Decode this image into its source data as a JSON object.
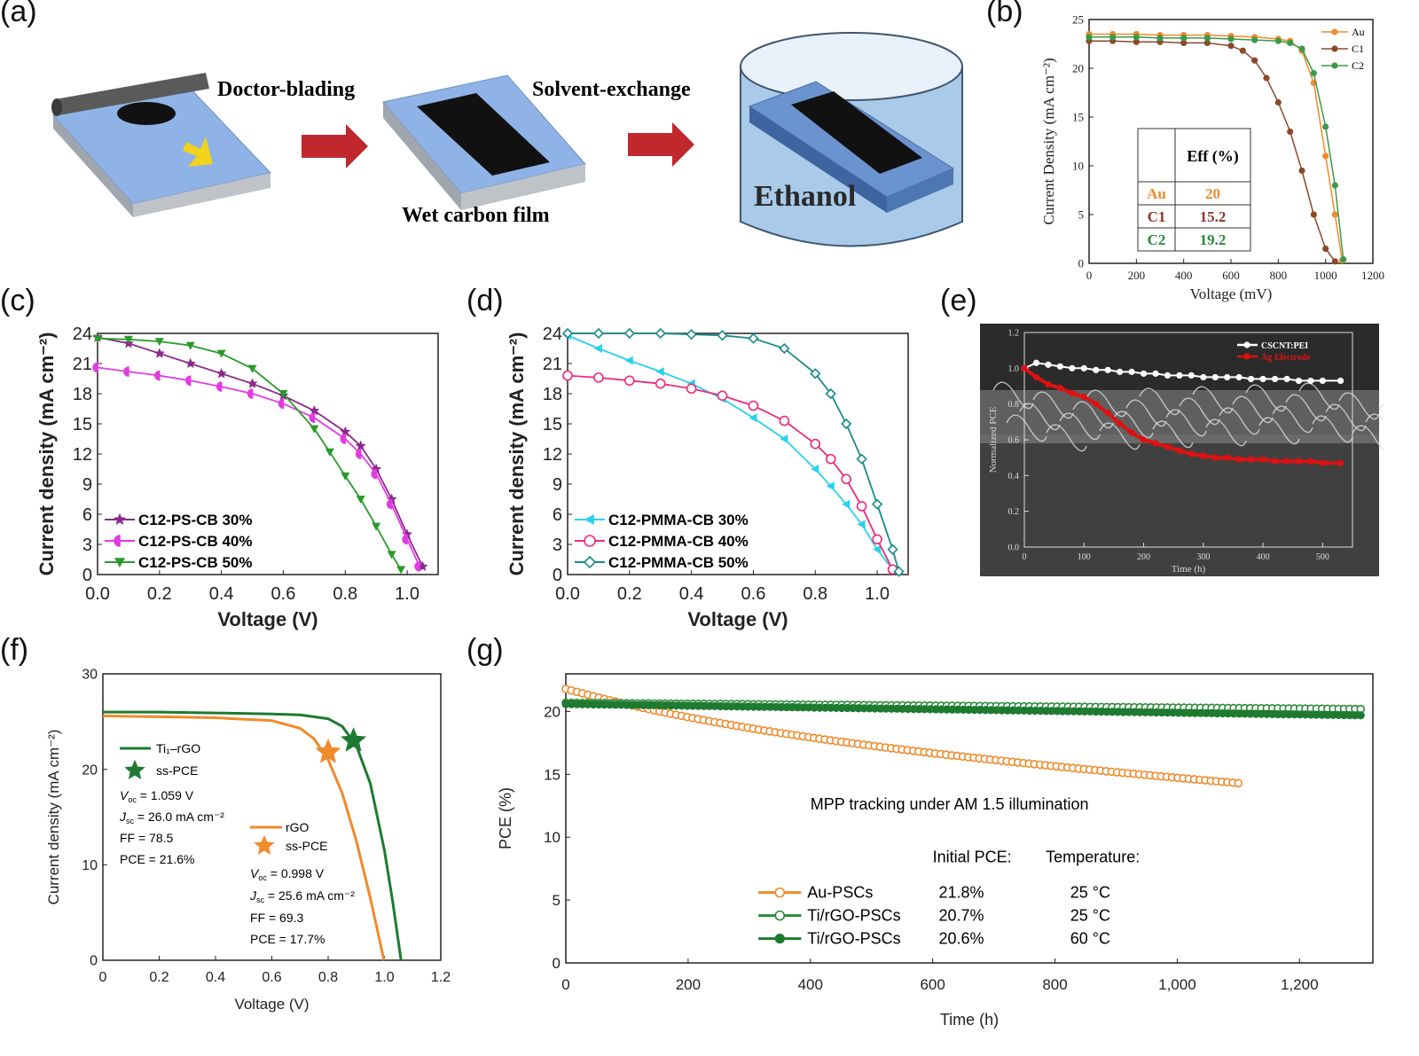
{
  "panel_letters": [
    "(a)",
    "(b)",
    "(c)",
    "(d)",
    "(e)",
    "(f)",
    "(g)"
  ],
  "schematic": {
    "step1": "Doctor-blading",
    "step2_caption": "Wet carbon film",
    "step3": "Solvent-exchange",
    "beaker_label": "Ethanol",
    "colors": {
      "substrate": "#8fb3e6",
      "film": "#111111",
      "arrow": "#c0282d",
      "rod": "#555555"
    },
    "icons": [
      "blade-rod-icon",
      "substrate-icon",
      "arrow-icon",
      "beaker-icon"
    ]
  },
  "chart_data": [
    {
      "id": "b",
      "type": "line",
      "xlabel": "Voltage (mV)",
      "ylabel": "Current Density (mA cm⁻²)",
      "xlim": [
        0,
        1200
      ],
      "ylim": [
        0,
        25
      ],
      "xticks": [
        0,
        200,
        400,
        600,
        800,
        1000,
        1200
      ],
      "yticks": [
        0,
        5,
        10,
        15,
        20,
        25
      ],
      "legend_position": "top-right",
      "series": [
        {
          "name": "Au",
          "color": "#f08a2a",
          "x": [
            0,
            100,
            200,
            300,
            400,
            500,
            600,
            700,
            800,
            850,
            900,
            950,
            1000,
            1040,
            1070
          ],
          "y": [
            23.5,
            23.5,
            23.5,
            23.4,
            23.4,
            23.4,
            23.3,
            23.2,
            23.0,
            22.8,
            21.8,
            18.5,
            11.0,
            5.0,
            0.3
          ]
        },
        {
          "name": "C1",
          "color": "#8a4a2a",
          "x": [
            0,
            100,
            200,
            300,
            400,
            500,
            600,
            650,
            700,
            750,
            800,
            850,
            900,
            950,
            1000,
            1040
          ],
          "y": [
            22.8,
            22.8,
            22.7,
            22.7,
            22.6,
            22.6,
            22.3,
            21.8,
            20.8,
            19.0,
            16.5,
            13.5,
            9.5,
            5.0,
            1.5,
            0.2
          ]
        },
        {
          "name": "C2",
          "color": "#3a9a4a",
          "x": [
            0,
            100,
            200,
            300,
            400,
            500,
            600,
            700,
            800,
            850,
            900,
            950,
            1000,
            1040,
            1075
          ],
          "y": [
            23.2,
            23.2,
            23.2,
            23.1,
            23.1,
            23.1,
            23.0,
            22.9,
            22.8,
            22.6,
            22.0,
            19.5,
            14.0,
            8.0,
            0.4
          ]
        }
      ],
      "table": {
        "header": "Eff (%)",
        "rows": [
          {
            "label": "Au",
            "value": "20",
            "color": "#f08a2a"
          },
          {
            "label": "C1",
            "value": "15.2",
            "color": "#8a3a2a"
          },
          {
            "label": "C2",
            "value": "19.2",
            "color": "#2a8a3a"
          }
        ]
      }
    },
    {
      "id": "c",
      "type": "line",
      "xlabel": "Voltage (V)",
      "ylabel": "Current density (mA cm⁻²)",
      "xlim": [
        0,
        1.1
      ],
      "ylim": [
        0,
        24
      ],
      "xticks": [
        0.0,
        0.2,
        0.4,
        0.6,
        0.8,
        1.0
      ],
      "xtick_labels": [
        "0.0",
        "0.2",
        "0.4",
        "0.6",
        "0.8",
        "1.0"
      ],
      "yticks": [
        0,
        3,
        6,
        9,
        12,
        15,
        18,
        21,
        24
      ],
      "legend_position": "bottom-left",
      "series": [
        {
          "name": "C12-PS-CB 30%",
          "color": "#8b2a8b",
          "marker": "star",
          "x": [
            0,
            0.1,
            0.2,
            0.3,
            0.4,
            0.5,
            0.6,
            0.7,
            0.8,
            0.85,
            0.9,
            0.95,
            1.0,
            1.05
          ],
          "y": [
            23.6,
            23.0,
            22.0,
            21.0,
            20.0,
            19.0,
            17.8,
            16.3,
            14.2,
            12.8,
            10.5,
            7.5,
            4.0,
            0.8
          ]
        },
        {
          "name": "C12-PS-CB 40%",
          "color": "#e23be2",
          "marker": "half",
          "x": [
            0,
            0.1,
            0.2,
            0.3,
            0.4,
            0.5,
            0.6,
            0.7,
            0.8,
            0.85,
            0.9,
            0.95,
            1.0,
            1.04
          ],
          "y": [
            20.6,
            20.2,
            19.8,
            19.3,
            18.7,
            18.0,
            17.0,
            15.6,
            13.5,
            12.0,
            10.0,
            7.0,
            3.5,
            0.8
          ]
        },
        {
          "name": "C12-PS-CB 50%",
          "color": "#2a9a2a",
          "marker": "triangle-down",
          "x": [
            0,
            0.1,
            0.2,
            0.3,
            0.4,
            0.5,
            0.6,
            0.7,
            0.75,
            0.8,
            0.85,
            0.9,
            0.95,
            0.98
          ],
          "y": [
            23.5,
            23.4,
            23.2,
            22.8,
            22.0,
            20.5,
            18.0,
            14.5,
            12.2,
            9.8,
            7.5,
            4.8,
            2.0,
            0.5
          ]
        }
      ]
    },
    {
      "id": "d",
      "type": "line",
      "xlabel": "Voltage (V)",
      "ylabel": "Current density (mA cm⁻²)",
      "xlim": [
        0,
        1.1
      ],
      "ylim": [
        0,
        24
      ],
      "xticks": [
        0.0,
        0.2,
        0.4,
        0.6,
        0.8,
        1.0
      ],
      "xtick_labels": [
        "0.0",
        "0.2",
        "0.4",
        "0.6",
        "0.8",
        "1.0"
      ],
      "yticks": [
        0,
        3,
        6,
        9,
        12,
        15,
        18,
        21,
        24
      ],
      "legend_position": "bottom-left",
      "series": [
        {
          "name": "C12-PMMA-CB 30%",
          "color": "#2ad0ef",
          "marker": "triangle-left",
          "x": [
            0,
            0.1,
            0.2,
            0.3,
            0.4,
            0.5,
            0.6,
            0.7,
            0.8,
            0.85,
            0.9,
            0.95,
            1.0,
            1.05
          ],
          "y": [
            23.8,
            22.5,
            21.3,
            20.2,
            19.0,
            17.5,
            15.6,
            13.5,
            10.5,
            8.8,
            7.0,
            5.0,
            2.5,
            0.5
          ]
        },
        {
          "name": "C12-PMMA-CB 40%",
          "color": "#ee2a7a",
          "marker": "circle",
          "x": [
            0,
            0.1,
            0.2,
            0.3,
            0.4,
            0.5,
            0.6,
            0.7,
            0.8,
            0.85,
            0.9,
            0.95,
            1.0,
            1.05
          ],
          "y": [
            19.8,
            19.6,
            19.3,
            19.0,
            18.5,
            17.8,
            16.8,
            15.3,
            13.0,
            11.5,
            9.5,
            6.8,
            3.5,
            0.5
          ]
        },
        {
          "name": "C12-PMMA-CB 50%",
          "color": "#1a8a8a",
          "marker": "diamond",
          "x": [
            0,
            0.1,
            0.2,
            0.3,
            0.4,
            0.5,
            0.6,
            0.7,
            0.8,
            0.85,
            0.9,
            0.95,
            1.0,
            1.05,
            1.07
          ],
          "y": [
            24.0,
            24.0,
            24.0,
            24.0,
            23.9,
            23.8,
            23.5,
            22.5,
            20.0,
            18.0,
            15.0,
            11.5,
            7.0,
            2.5,
            0.3
          ]
        }
      ]
    },
    {
      "id": "e",
      "type": "line",
      "xlabel": "Time (h)",
      "ylabel": "Normalized PCE",
      "xlim": [
        0,
        550
      ],
      "ylim": [
        0,
        1.2
      ],
      "xticks": [
        0,
        100,
        200,
        300,
        400,
        500
      ],
      "yticks": [
        0.0,
        0.2,
        0.4,
        0.6,
        0.8,
        1.0,
        1.2
      ],
      "ytick_labels": [
        "0.0",
        "0.2",
        "0.4",
        "0.6",
        "0.8",
        "1.0",
        "1.2"
      ],
      "legend_position": "top-right",
      "series": [
        {
          "name": "CSCNT:PEI",
          "color": "#ffffff",
          "x": [
            0,
            20,
            40,
            60,
            80,
            100,
            120,
            140,
            160,
            180,
            200,
            220,
            240,
            260,
            280,
            300,
            320,
            340,
            360,
            380,
            400,
            420,
            440,
            460,
            480,
            500,
            530
          ],
          "y": [
            1.0,
            1.03,
            1.02,
            1.01,
            1.0,
            1.0,
            0.99,
            0.99,
            0.98,
            0.98,
            0.97,
            0.97,
            0.96,
            0.96,
            0.96,
            0.95,
            0.95,
            0.95,
            0.95,
            0.94,
            0.94,
            0.94,
            0.94,
            0.93,
            0.93,
            0.93,
            0.93
          ]
        },
        {
          "name": "Ag Electrode",
          "color": "#e01010",
          "x": [
            0,
            20,
            40,
            60,
            80,
            100,
            120,
            140,
            160,
            180,
            200,
            220,
            240,
            260,
            280,
            300,
            320,
            340,
            360,
            380,
            400,
            420,
            440,
            460,
            480,
            500,
            530
          ],
          "y": [
            1.0,
            0.95,
            0.91,
            0.89,
            0.86,
            0.84,
            0.8,
            0.75,
            0.69,
            0.64,
            0.6,
            0.58,
            0.56,
            0.54,
            0.52,
            0.51,
            0.5,
            0.5,
            0.49,
            0.49,
            0.49,
            0.48,
            0.48,
            0.48,
            0.48,
            0.47,
            0.47
          ]
        }
      ]
    },
    {
      "id": "f",
      "type": "line",
      "xlabel": "Voltage (V)",
      "ylabel": "Current density (mA cm⁻²)",
      "xlim": [
        0,
        1.2
      ],
      "ylim": [
        0,
        30
      ],
      "xticks": [
        0,
        0.2,
        0.4,
        0.6,
        0.8,
        1.0,
        1.2
      ],
      "xtick_labels": [
        "0",
        "0.2",
        "0.4",
        "0.6",
        "0.8",
        "1.0",
        "1.2"
      ],
      "yticks": [
        0,
        10,
        20,
        30
      ],
      "series": [
        {
          "name": "Ti₁–rGO",
          "color": "#1e7a30",
          "x": [
            0,
            0.2,
            0.4,
            0.6,
            0.7,
            0.8,
            0.85,
            0.9,
            0.95,
            1.0,
            1.03,
            1.059
          ],
          "y": [
            26.0,
            26.0,
            25.9,
            25.8,
            25.7,
            25.3,
            24.5,
            22.5,
            18.5,
            11.5,
            6.0,
            0
          ]
        },
        {
          "name": "rGO",
          "color": "#f08a2a",
          "x": [
            0,
            0.2,
            0.4,
            0.6,
            0.7,
            0.75,
            0.8,
            0.85,
            0.9,
            0.95,
            0.98,
            0.998
          ],
          "y": [
            25.6,
            25.5,
            25.4,
            25.1,
            24.3,
            23.2,
            21.0,
            17.5,
            12.5,
            6.5,
            2.5,
            0
          ]
        }
      ],
      "stars": [
        {
          "color": "#1e7a30",
          "x": 0.89,
          "y": 23.0
        },
        {
          "color": "#f08a2a",
          "x": 0.8,
          "y": 21.8
        }
      ],
      "annotations": {
        "green": {
          "name": "Ti₁–rGO",
          "marker_label": "ss-PCE",
          "voc": "= 1.059 V",
          "jsc": "= 26.0 mA cm⁻²",
          "ff": "FF = 78.5",
          "pce": "PCE = 21.6%"
        },
        "orange": {
          "name": "rGO",
          "marker_label": "ss-PCE",
          "voc": "= 0.998 V",
          "jsc": "= 25.6 mA cm⁻²",
          "ff": "FF = 69.3",
          "pce": "PCE = 17.7%"
        }
      }
    },
    {
      "id": "g",
      "type": "scatter",
      "xlabel": "Time (h)",
      "ylabel": "PCE (%)",
      "xlim": [
        0,
        1320
      ],
      "ylim": [
        0,
        23
      ],
      "xticks": [
        0,
        200,
        400,
        600,
        800,
        1000,
        1200
      ],
      "xtick_labels": [
        "0",
        "200",
        "400",
        "600",
        "800",
        "1,000",
        "1,200"
      ],
      "yticks": [
        0,
        5,
        10,
        15,
        20
      ],
      "annotation": "MPP tracking under AM 1.5 illumination",
      "legend_headers": [
        "Initial PCE:",
        "Temperature:"
      ],
      "series": [
        {
          "name": "Au-PSCs",
          "color": "#f08a2a",
          "filled": false,
          "initial": "21.8%",
          "temperature": "25 °C",
          "x_end": 1100,
          "y_start": 21.8,
          "y_end": 14.3,
          "curve": "decay"
        },
        {
          "name": "Ti/rGO-PSCs",
          "color": "#2a8a3a",
          "filled": false,
          "initial": "20.7%",
          "temperature": "25 °C",
          "x_end": 1300,
          "y_start": 20.7,
          "y_end": 20.2,
          "curve": "linear"
        },
        {
          "name": "Ti/rGO-PSCs",
          "color": "#1e7a30",
          "filled": true,
          "initial": "20.6%",
          "temperature": "60 °C",
          "x_end": 1300,
          "y_start": 20.6,
          "y_end": 19.7,
          "curve": "linear"
        }
      ]
    }
  ]
}
